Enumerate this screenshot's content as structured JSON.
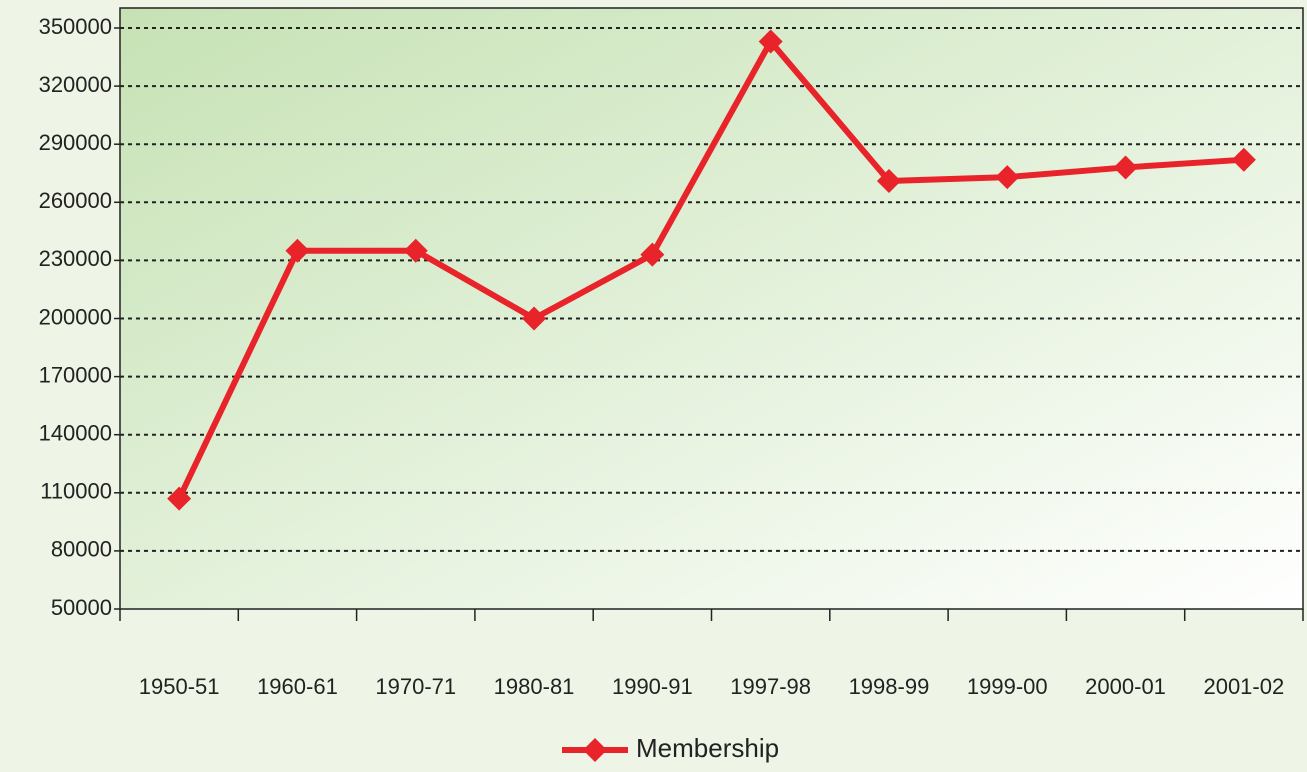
{
  "chart_data": {
    "type": "line",
    "categories": [
      "1950-51",
      "1960-61",
      "1970-71",
      "1980-81",
      "1990-91",
      "1997-98",
      "1998-99",
      "1999-00",
      "2000-01",
      "2001-02"
    ],
    "series": [
      {
        "name": "Membership",
        "color": "#e8232a",
        "values": [
          107000,
          235000,
          235000,
          200000,
          233000,
          343000,
          271000,
          273000,
          278000,
          282000
        ]
      }
    ],
    "ylim": [
      50000,
      350000
    ],
    "yticks": [
      50000,
      80000,
      110000,
      140000,
      170000,
      200000,
      230000,
      260000,
      290000,
      320000,
      350000
    ],
    "grid": true,
    "legend": "bottom"
  }
}
